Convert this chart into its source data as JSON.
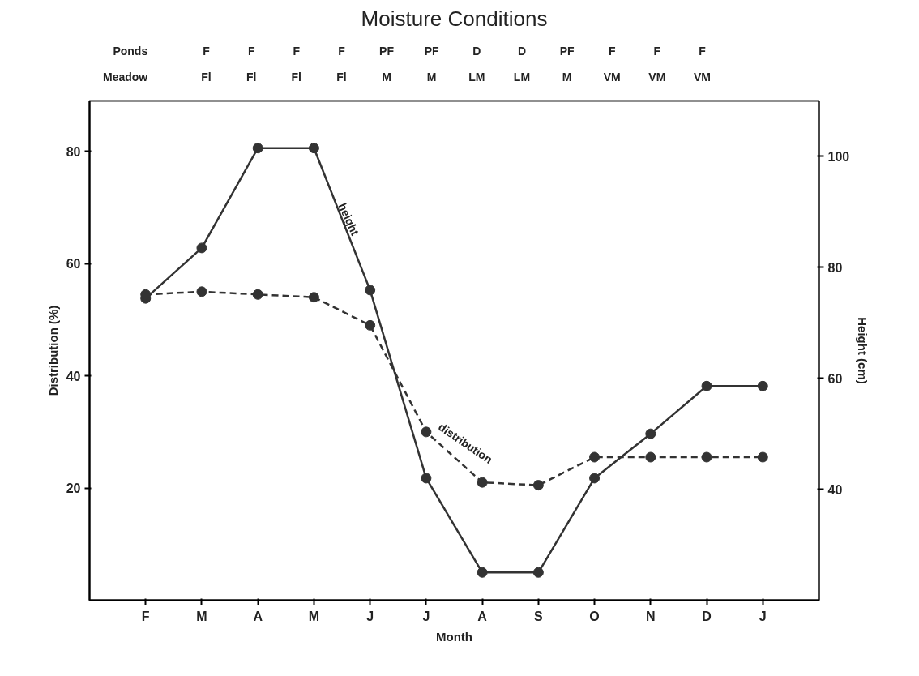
{
  "chart_data": {
    "type": "line",
    "title": "Moisture Conditions",
    "xlabel": "Month",
    "ylabel": "Distribution (%)",
    "y2label": "Height (cm)",
    "categories": [
      "F",
      "M",
      "A",
      "M",
      "J",
      "J",
      "A",
      "S",
      "O",
      "N",
      "D",
      "J"
    ],
    "ylim": [
      0,
      89
    ],
    "yticks": [
      20,
      40,
      60,
      80
    ],
    "y2lim": [
      20,
      110
    ],
    "y2ticks": [
      40,
      60,
      80,
      100
    ],
    "series": [
      {
        "color": "#333333",
        "axis": "y2",
        "line_style": "solid",
        "values": [
          74.4,
          83.5,
          101.5,
          101.5,
          75.9,
          42,
          25,
          25,
          42,
          50,
          58.6,
          58.6
        ]
      },
      {
        "color": "#333333",
        "line_style": "dashed",
        "values": [
          54.5,
          55,
          54.5,
          54,
          49,
          30,
          21,
          20.5,
          25.5,
          25.5,
          25.5,
          25.5
        ]
      }
    ],
    "marker": "circle",
    "grid": false,
    "annotations": [
      "height",
      "distribution",
      "Ponds",
      "F",
      "F",
      "F",
      "F",
      "PF",
      "PF",
      "D",
      "D",
      "PF",
      "F",
      "F",
      "F",
      "Meadow",
      "Fl",
      "Fl",
      "Fl",
      "Fl",
      "M",
      "M",
      "LM",
      "LM",
      "M",
      "VM",
      "VM",
      "VM"
    ]
  }
}
